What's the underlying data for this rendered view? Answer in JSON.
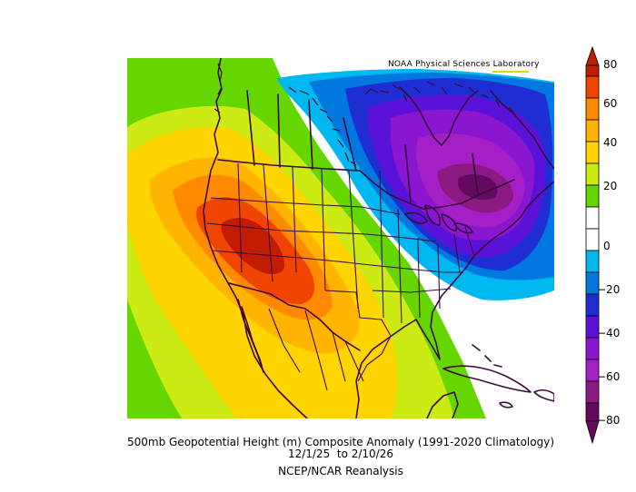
{
  "map": {
    "credit": "NOAA Physical Sciences Laboratory",
    "title": "500mb Geopotential Height (m) Composite Anomaly (1991-2020 Climatology)",
    "date_range": "12/1/25  to 2/10/26",
    "source": "NCEP/NCAR Reanalysis",
    "colorbar": {
      "unit": "m",
      "ticks": [
        "80",
        "60",
        "40",
        "20",
        "0",
        "−20",
        "−40",
        "−60",
        "−80"
      ],
      "colors_top_to_bottom": [
        "#c11b00",
        "#f04500",
        "#ff8a00",
        "#ffb400",
        "#ffd500",
        "#ccea13",
        "#66d600",
        "#ffffff",
        "#ffffff",
        "#00b8f0",
        "#0078e0",
        "#1f2ed2",
        "#5a12d8",
        "#8a16d0",
        "#a51fc6",
        "#8a1a82",
        "#640a5e"
      ]
    }
  }
}
